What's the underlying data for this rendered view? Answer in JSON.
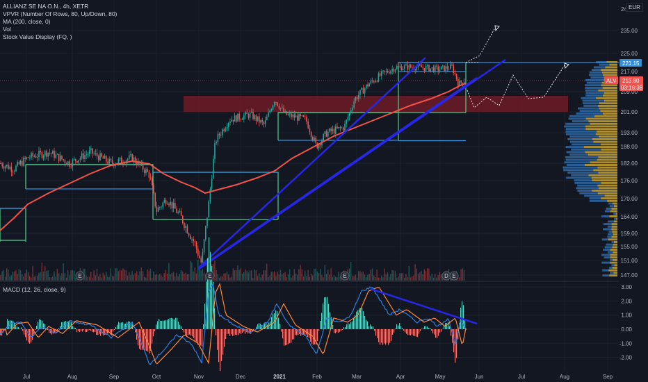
{
  "legend": {
    "symbol": "ALLIANZ SE NA O.N., 4h, XETR",
    "vpvr": "VPVR (Number Of Rows, 80, Up/Down, 80)",
    "ma": "MA (200, close, 0)",
    "vol": "Vol",
    "svd": "Stock Value Display (FQ, )"
  },
  "currency": "EUR",
  "macd_legend": "MACD (12, 26, close, 9)",
  "price_axis": {
    "ticks": [
      "235.00",
      "225.00",
      "217.00",
      "209.00",
      "201.00",
      "193.00",
      "188.00",
      "182.00",
      "176.00",
      "170.00",
      "164.00",
      "159.00",
      "155.00",
      "151.00",
      "147.00"
    ],
    "top_partial": "24",
    "high_tag": "221.15",
    "ticker_tag": "ALV",
    "last_price": "213.80",
    "countdown": "03:16:38"
  },
  "macd_axis": {
    "ticks": [
      "3.00",
      "2.00",
      "1.00",
      "0.00",
      "-1.00",
      "-2.00"
    ]
  },
  "time_axis": [
    {
      "label": "Jul",
      "bold": false
    },
    {
      "label": "Aug",
      "bold": false
    },
    {
      "label": "Sep",
      "bold": false
    },
    {
      "label": "Oct",
      "bold": false
    },
    {
      "label": "Nov",
      "bold": false
    },
    {
      "label": "Dec",
      "bold": false
    },
    {
      "label": "2021",
      "bold": true
    },
    {
      "label": "Feb",
      "bold": false
    },
    {
      "label": "Mar",
      "bold": false
    },
    {
      "label": "Apr",
      "bold": false
    },
    {
      "label": "May",
      "bold": false
    },
    {
      "label": "Jun",
      "bold": false
    },
    {
      "label": "Jul",
      "bold": false
    },
    {
      "label": "Aug",
      "bold": false
    },
    {
      "label": "Sep",
      "bold": false
    }
  ],
  "earnings_marker": "E",
  "dividend_marker": "D",
  "colors": {
    "background": "#131722",
    "up": "#26a69a",
    "down": "#ef5350",
    "ma": "#f2534a",
    "trendline": "#2727e6",
    "box": "#4cd08b",
    "level": "#2f8fdb",
    "zone": "#7a1c27",
    "macd": "#2f7fe0",
    "signal": "#ff8a3d",
    "vp_up": "#2f6fb0",
    "vp_down": "#c8a233"
  }
}
